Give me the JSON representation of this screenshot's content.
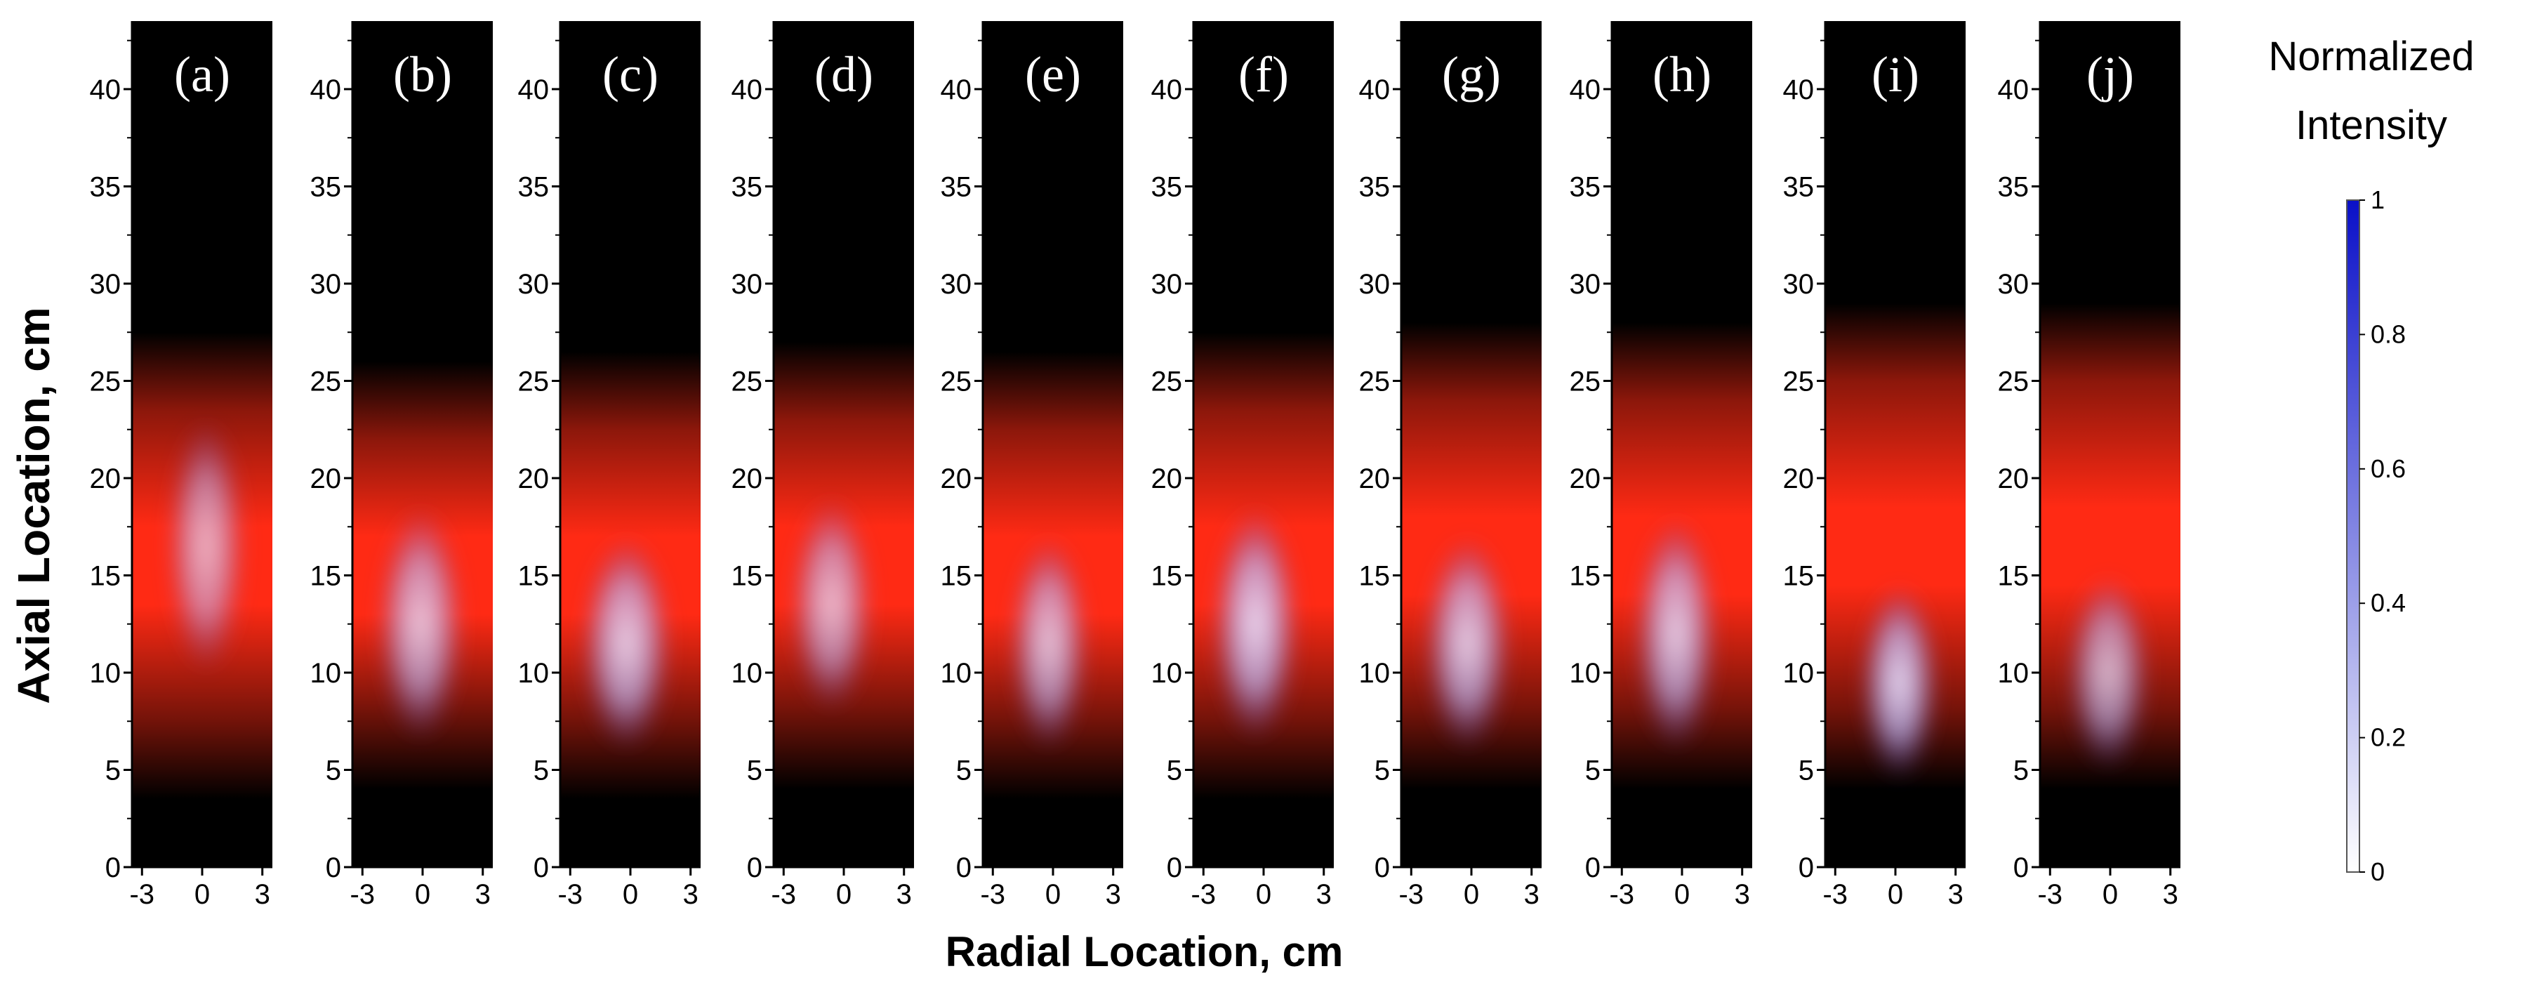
{
  "chart_data": {
    "type": "heatmap",
    "panel_labels": [
      "(a)",
      "(b)",
      "(c)",
      "(d)",
      "(e)",
      "(f)",
      "(g)",
      "(h)",
      "(i)",
      "(j)"
    ],
    "xlabel": "Radial Location, cm",
    "ylabel": "Axial Location, cm",
    "xlim": [
      -3.5,
      3.5
    ],
    "ylim": [
      0,
      43.5
    ],
    "x_ticks": [
      -3,
      0,
      3
    ],
    "x_tick_labels": [
      "-3",
      "0",
      "3"
    ],
    "y_ticks": [
      0,
      5,
      10,
      15,
      20,
      25,
      30,
      35,
      40
    ],
    "y_tick_labels": [
      "0",
      "5",
      "10",
      "15",
      "20",
      "25",
      "30",
      "35",
      "40"
    ],
    "colorbar": {
      "title_lines": [
        "Normalized",
        "Intensity"
      ],
      "range": [
        0,
        1
      ],
      "ticks": [
        0,
        0.2,
        0.4,
        0.6,
        0.8,
        1
      ],
      "tick_labels": [
        "0",
        "0.2",
        "0.4",
        "0.6",
        "0.8",
        "1"
      ],
      "color_low": "#ffffff",
      "color_high": "#0a10c8"
    },
    "colors": {
      "background": "#000000",
      "flame_red": "#ff2a14",
      "core_blue": "#b8b4f4",
      "core_white": "#f2e8ff"
    },
    "panels": [
      {
        "id": "a",
        "red_center_y": 15.5,
        "red_extent_y": 8,
        "core_center": [
          0.2,
          16.5
        ],
        "core_size": [
          1.9,
          6.5
        ],
        "core_intensity": 0.75
      },
      {
        "id": "b",
        "red_center_y": 15,
        "red_extent_y": 7,
        "core_center": [
          -0.1,
          12.5
        ],
        "core_size": [
          2.1,
          6.0
        ],
        "core_intensity": 0.85
      },
      {
        "id": "c",
        "red_center_y": 15,
        "red_extent_y": 7.5,
        "core_center": [
          -0.2,
          11.5
        ],
        "core_size": [
          2.2,
          5.5
        ],
        "core_intensity": 0.9
      },
      {
        "id": "d",
        "red_center_y": 15.5,
        "red_extent_y": 7.5,
        "core_center": [
          -0.6,
          13.5
        ],
        "core_size": [
          2.0,
          5.5
        ],
        "core_intensity": 0.8
      },
      {
        "id": "e",
        "red_center_y": 15,
        "red_extent_y": 7.5,
        "core_center": [
          -0.2,
          11.5
        ],
        "core_size": [
          1.9,
          5.5
        ],
        "core_intensity": 0.85
      },
      {
        "id": "f",
        "red_center_y": 15.5,
        "red_extent_y": 8,
        "core_center": [
          -0.4,
          12.5
        ],
        "core_size": [
          2.1,
          6.0
        ],
        "core_intensity": 0.95
      },
      {
        "id": "g",
        "red_center_y": 16,
        "red_extent_y": 8,
        "core_center": [
          -0.2,
          11.5
        ],
        "core_size": [
          2.1,
          5.5
        ],
        "core_intensity": 0.9
      },
      {
        "id": "h",
        "red_center_y": 16,
        "red_extent_y": 8,
        "core_center": [
          -0.3,
          12.0
        ],
        "core_size": [
          2.0,
          6.0
        ],
        "core_intensity": 0.9
      },
      {
        "id": "i",
        "red_center_y": 16.5,
        "red_extent_y": 8.5,
        "core_center": [
          0.2,
          9.5
        ],
        "core_size": [
          1.9,
          5.0
        ],
        "core_intensity": 0.95
      },
      {
        "id": "j",
        "red_center_y": 16.5,
        "red_extent_y": 8.5,
        "core_center": [
          -0.1,
          10.0
        ],
        "core_size": [
          2.0,
          5.0
        ],
        "core_intensity": 0.8
      }
    ]
  }
}
